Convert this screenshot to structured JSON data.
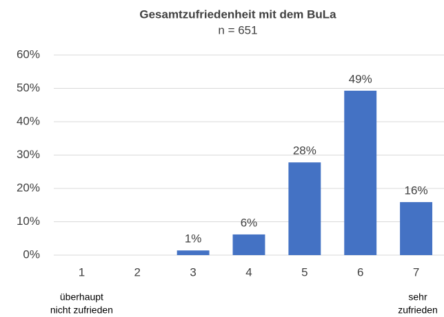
{
  "chart_data": {
    "type": "bar",
    "title": "Gesamtzufriedenheit mit dem BuLa",
    "subtitle": "n = 651",
    "categories": [
      "1",
      "2",
      "3",
      "4",
      "5",
      "6",
      "7"
    ],
    "values": [
      0,
      0,
      1.4,
      6.2,
      27.8,
      49.3,
      15.9
    ],
    "value_labels": [
      null,
      null,
      "1%",
      "6%",
      "28%",
      "49%",
      "16%"
    ],
    "color": "#4472c4",
    "ylim": [
      0,
      60
    ],
    "yticks": [
      {
        "value": 0,
        "label": "0%"
      },
      {
        "value": 10,
        "label": "10%"
      },
      {
        "value": 20,
        "label": "20%"
      },
      {
        "value": 30,
        "label": "30%"
      },
      {
        "value": 40,
        "label": "40%"
      },
      {
        "value": 50,
        "label": "50%"
      },
      {
        "value": 60,
        "label": "60%"
      }
    ],
    "grid": true,
    "annotations": [
      {
        "lines": [
          "überhaupt",
          "nicht zufrieden"
        ],
        "category": 0
      },
      {
        "lines": [
          "sehr",
          "zufrieden"
        ],
        "category": 6
      }
    ]
  }
}
